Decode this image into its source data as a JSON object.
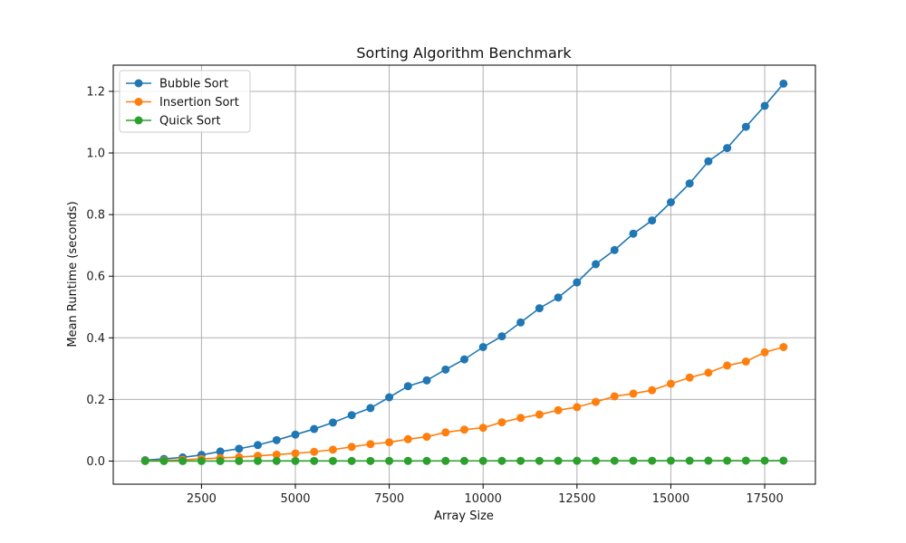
{
  "chart_data": {
    "type": "line",
    "title": "Sorting Algorithm Benchmark",
    "xlabel": "Array Size",
    "ylabel": "Mean Runtime (seconds)",
    "xlim": [
      150,
      18850
    ],
    "ylim": [
      -0.075,
      1.285
    ],
    "xticks": [
      2500,
      5000,
      7500,
      10000,
      12500,
      15000,
      17500
    ],
    "xtick_labels": [
      "2500",
      "5000",
      "7500",
      "10000",
      "12500",
      "15000",
      "17500"
    ],
    "yticks": [
      0.0,
      0.2,
      0.4,
      0.6,
      0.8,
      1.0,
      1.2
    ],
    "ytick_labels": [
      "0.0",
      "0.2",
      "0.4",
      "0.6",
      "0.8",
      "1.0",
      "1.2"
    ],
    "grid": true,
    "legend_position": "top-left",
    "x": [
      1000,
      1500,
      2000,
      2500,
      3000,
      3500,
      4000,
      4500,
      5000,
      5500,
      6000,
      6500,
      7000,
      7500,
      8000,
      8500,
      9000,
      9500,
      10000,
      10500,
      11000,
      11500,
      12000,
      12500,
      13000,
      13500,
      14000,
      14500,
      15000,
      15500,
      16000,
      16500,
      17000,
      17500,
      18000
    ],
    "series": [
      {
        "name": "Bubble Sort",
        "color": "#1f77b4",
        "values": [
          0.003,
          0.007,
          0.012,
          0.02,
          0.031,
          0.04,
          0.052,
          0.068,
          0.086,
          0.104,
          0.125,
          0.149,
          0.172,
          0.207,
          0.243,
          0.262,
          0.297,
          0.33,
          0.37,
          0.405,
          0.45,
          0.496,
          0.531,
          0.58,
          0.639,
          0.685,
          0.738,
          0.781,
          0.84,
          0.901,
          0.973,
          1.016,
          1.085,
          1.153,
          1.225
        ]
      },
      {
        "name": "Insertion Sort",
        "color": "#ff7f0e",
        "values": [
          0.001,
          0.002,
          0.004,
          0.007,
          0.01,
          0.013,
          0.017,
          0.021,
          0.025,
          0.03,
          0.037,
          0.046,
          0.055,
          0.061,
          0.071,
          0.079,
          0.093,
          0.102,
          0.108,
          0.126,
          0.14,
          0.151,
          0.165,
          0.175,
          0.192,
          0.21,
          0.219,
          0.23,
          0.251,
          0.271,
          0.287,
          0.31,
          0.323,
          0.353,
          0.37
        ]
      },
      {
        "name": "Quick Sort",
        "color": "#2ca02c",
        "values": [
          0.0001,
          0.0001,
          0.0002,
          0.0002,
          0.0002,
          0.0002,
          0.0003,
          0.0003,
          0.0003,
          0.0003,
          0.0004,
          0.0004,
          0.0004,
          0.0005,
          0.0005,
          0.0005,
          0.0006,
          0.0006,
          0.0006,
          0.0007,
          0.0008,
          0.0008,
          0.0009,
          0.0009,
          0.001,
          0.001,
          0.0011,
          0.0011,
          0.0012,
          0.0012,
          0.0013,
          0.0013,
          0.0014,
          0.0014,
          0.0015
        ]
      }
    ]
  }
}
